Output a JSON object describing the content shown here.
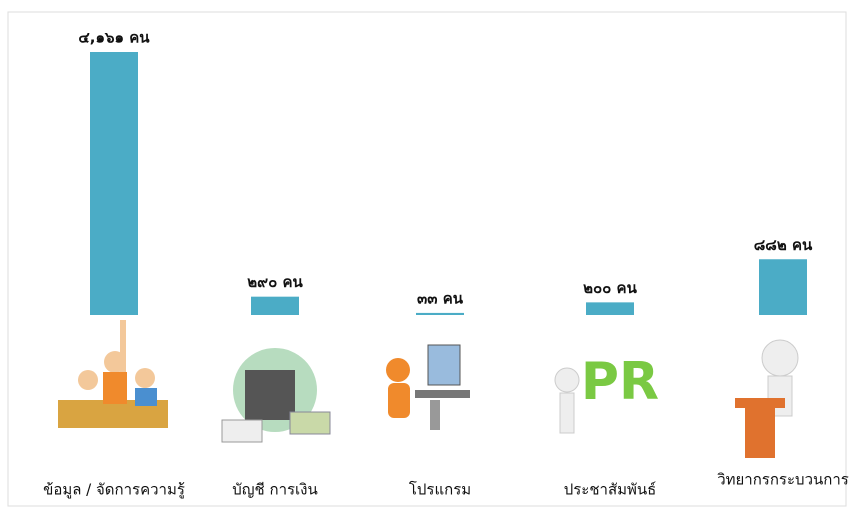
{
  "chart_data": {
    "type": "bar",
    "categories": [
      "ข้อมูล / จัดการความรู้",
      "บัญชี การเงิน",
      "โปรแกรม",
      "ประชาสัมพันธ์",
      "วิทยากรกระบวนการ"
    ],
    "values": [
      4161,
      290,
      33,
      200,
      882
    ],
    "value_labels": [
      "๔,๑๖๑ คน",
      "๒๙๐ คน",
      "๓๓ คน",
      "๒๐๐ คน",
      "๘๘๒ คน"
    ],
    "color": "#4bacc6"
  }
}
